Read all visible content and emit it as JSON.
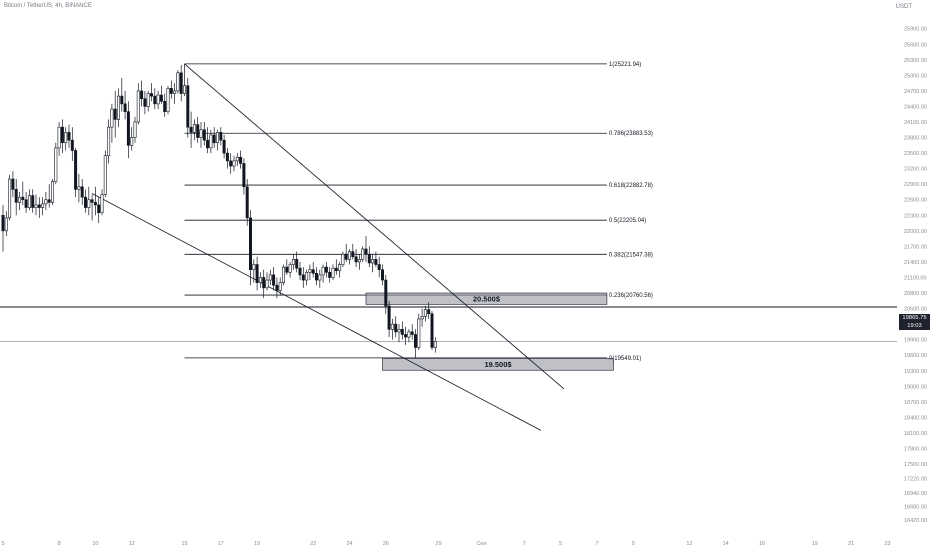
{
  "header": {
    "title": "Bitcoin / TetherUS, 4h, BINANCE",
    "unit": "USDT"
  },
  "price_tag": {
    "price": "19865.75",
    "countdown": "19:03"
  },
  "colors": {
    "candle": "#131722",
    "grid_line": "#131722",
    "zone_fill": "#9598a1",
    "zone_stroke": "#131722",
    "axis_text": "#888b95"
  },
  "chart_data": {
    "type": "candlestick",
    "title": "Bitcoin / TetherUS, 4h, BINANCE",
    "y_unit": "USDT",
    "ylim": [
      16420,
      26300
    ],
    "y_ticks": [
      "16420.00",
      "16680.00",
      "16940.00",
      "17220.00",
      "17500.00",
      "17800.00",
      "18100.00",
      "18400.00",
      "18700.00",
      "19000.00",
      "19300.00",
      "19600.00",
      "19900.00",
      "20200.00",
      "20500.00",
      "20800.00",
      "21100.00",
      "21400.00",
      "21700.00",
      "22000.00",
      "22300.00",
      "22600.00",
      "22900.00",
      "23200.00",
      "23500.00",
      "23800.00",
      "24100.00",
      "24400.00",
      "24700.00",
      "25000.00",
      "25300.00",
      "25600.00",
      "25900.00",
      "26200.00"
    ],
    "x_ticks": [
      {
        "label": "5",
        "i": 0
      },
      {
        "label": "8",
        "i": 17
      },
      {
        "label": "10",
        "i": 28
      },
      {
        "label": "12",
        "i": 39
      },
      {
        "label": "15",
        "i": 55
      },
      {
        "label": "17",
        "i": 66
      },
      {
        "label": "19",
        "i": 77
      },
      {
        "label": "22",
        "i": 94
      },
      {
        "label": "24",
        "i": 105
      },
      {
        "label": "26",
        "i": 116
      },
      {
        "label": "29",
        "i": 132
      },
      {
        "label": "Сен",
        "i": 145
      },
      {
        "label": "7",
        "i": 158
      },
      {
        "label": "5",
        "i": 169
      },
      {
        "label": "7",
        "i": 180
      },
      {
        "label": "9",
        "i": 191
      },
      {
        "label": "12",
        "i": 208
      },
      {
        "label": "14",
        "i": 219
      },
      {
        "label": "16",
        "i": 230
      },
      {
        "label": "19",
        "i": 246
      },
      {
        "label": "21",
        "i": 257
      },
      {
        "label": "23",
        "i": 268
      }
    ],
    "horizontal_lines": [
      {
        "name": "resistance-line",
        "value": 20530
      },
      {
        "name": "current-price-line",
        "value": 19865.75
      }
    ],
    "fibonacci": {
      "start_i": 55,
      "end_i": 183,
      "levels": [
        {
          "label": "1(25221.94)",
          "value": 25221.94
        },
        {
          "label": "0.786(23883.53)",
          "value": 23883.53
        },
        {
          "label": "0.618(22882.78)",
          "value": 22882.78
        },
        {
          "label": "0.5(22205.04)",
          "value": 22205.04
        },
        {
          "label": "0.382(21547.38)",
          "value": 21547.38
        },
        {
          "label": "0.236(20760.56)",
          "value": 20760.56
        },
        {
          "label": "0(19549.01)",
          "value": 19549.01
        }
      ]
    },
    "zones": [
      {
        "label": "20.500$",
        "start_i": 110,
        "end_i": 183,
        "top": 20800,
        "bottom": 20580
      },
      {
        "label": "19.500$",
        "start_i": 115,
        "end_i": 185,
        "top": 19540,
        "bottom": 19310
      }
    ],
    "trendlines": [
      {
        "name": "upper-channel-line",
        "from": [
          55,
          25221
        ],
        "to": [
          170,
          18950
        ]
      },
      {
        "name": "lower-channel-line",
        "from": [
          27,
          22720
        ],
        "to": [
          163,
          18150
        ]
      }
    ],
    "candles": [
      [
        22300,
        22500,
        21600,
        22000
      ],
      [
        22000,
        22380,
        21900,
        22250
      ],
      [
        22250,
        23080,
        22200,
        23000
      ],
      [
        23000,
        23150,
        22650,
        22800
      ],
      [
        22800,
        23000,
        22300,
        22550
      ],
      [
        22550,
        22750,
        22400,
        22650
      ],
      [
        22650,
        22950,
        22500,
        22600
      ],
      [
        22600,
        22750,
        22350,
        22450
      ],
      [
        22450,
        22800,
        22400,
        22680
      ],
      [
        22680,
        22800,
        22350,
        22450
      ],
      [
        22450,
        22700,
        22300,
        22500
      ],
      [
        22500,
        22650,
        22250,
        22450
      ],
      [
        22450,
        22650,
        22300,
        22520
      ],
      [
        22520,
        22750,
        22400,
        22600
      ],
      [
        22600,
        22900,
        22450,
        22550
      ],
      [
        22550,
        23000,
        22500,
        22950
      ],
      [
        22950,
        23700,
        22900,
        23600
      ],
      [
        23600,
        24100,
        23450,
        24000
      ],
      [
        24000,
        24150,
        23500,
        23700
      ],
      [
        23700,
        24000,
        23550,
        23900
      ],
      [
        23900,
        24050,
        23600,
        23750
      ],
      [
        23750,
        24000,
        23350,
        23550
      ],
      [
        23550,
        23600,
        22650,
        22800
      ],
      [
        22800,
        23100,
        22550,
        22850
      ],
      [
        22850,
        23000,
        22500,
        22650
      ],
      [
        22650,
        22800,
        22350,
        22450
      ],
      [
        22450,
        22850,
        22300,
        22600
      ],
      [
        22600,
        22700,
        22200,
        22550
      ],
      [
        22550,
        22850,
        22300,
        22500
      ],
      [
        22500,
        22650,
        22150,
        22350
      ],
      [
        22350,
        22800,
        22300,
        22700
      ],
      [
        22700,
        23550,
        22650,
        23450
      ],
      [
        23450,
        24150,
        23300,
        24000
      ],
      [
        24000,
        24450,
        23700,
        24350
      ],
      [
        24350,
        24700,
        23800,
        24150
      ],
      [
        24150,
        24750,
        24000,
        24600
      ],
      [
        24600,
        24950,
        24300,
        24450
      ],
      [
        24450,
        24700,
        24150,
        24300
      ],
      [
        24300,
        24500,
        23400,
        23650
      ],
      [
        23650,
        24000,
        23550,
        23800
      ],
      [
        23800,
        24200,
        23700,
        24100
      ],
      [
        24100,
        24850,
        24050,
        24700
      ],
      [
        24700,
        24900,
        24400,
        24550
      ],
      [
        24550,
        24700,
        24250,
        24400
      ],
      [
        24400,
        24700,
        24300,
        24650
      ],
      [
        24650,
        24850,
        24500,
        24600
      ],
      [
        24600,
        24750,
        24350,
        24450
      ],
      [
        24450,
        24700,
        24350,
        24620
      ],
      [
        24620,
        24800,
        24450,
        24500
      ],
      [
        24500,
        24650,
        24200,
        24300
      ],
      [
        24300,
        24800,
        24250,
        24750
      ],
      [
        24750,
        24900,
        24550,
        24650
      ],
      [
        24650,
        24850,
        24450,
        24700
      ],
      [
        24700,
        25100,
        24650,
        25050
      ],
      [
        25050,
        25200,
        24500,
        24650
      ],
      [
        24650,
        25222,
        24600,
        24800
      ],
      [
        24800,
        24950,
        23800,
        24000
      ],
      [
        24000,
        24300,
        23600,
        23900
      ],
      [
        23900,
        24150,
        23750,
        24050
      ],
      [
        24050,
        24200,
        23700,
        23800
      ],
      [
        23800,
        24100,
        23600,
        23950
      ],
      [
        23950,
        24100,
        23650,
        23750
      ],
      [
        23750,
        24000,
        23500,
        23600
      ],
      [
        23600,
        23950,
        23500,
        23850
      ],
      [
        23850,
        24000,
        23600,
        23700
      ],
      [
        23700,
        23950,
        23550,
        23900
      ],
      [
        23900,
        24000,
        23650,
        23750
      ],
      [
        23750,
        23850,
        23400,
        23500
      ],
      [
        23500,
        23600,
        23200,
        23350
      ],
      [
        23350,
        23500,
        23100,
        23250
      ],
      [
        23250,
        23450,
        23150,
        23350
      ],
      [
        23350,
        23500,
        23250,
        23420
      ],
      [
        23420,
        23550,
        23200,
        23300
      ],
      [
        23300,
        23400,
        22700,
        22850
      ],
      [
        22850,
        23000,
        22100,
        22250
      ],
      [
        22250,
        22400,
        20950,
        21250
      ],
      [
        21250,
        21450,
        21000,
        21350
      ],
      [
        21350,
        21500,
        20850,
        21000
      ],
      [
        21000,
        21200,
        20900,
        21100
      ],
      [
        21100,
        21250,
        20700,
        20900
      ],
      [
        20900,
        21200,
        20850,
        21050
      ],
      [
        21050,
        21250,
        20950,
        21150
      ],
      [
        21150,
        21300,
        20850,
        20950
      ],
      [
        20950,
        21100,
        20700,
        20850
      ],
      [
        20850,
        21100,
        20750,
        21000
      ],
      [
        21000,
        21350,
        20950,
        21300
      ],
      [
        21300,
        21450,
        21150,
        21200
      ],
      [
        21200,
        21400,
        21100,
        21350
      ],
      [
        21350,
        21550,
        21250,
        21450
      ],
      [
        21450,
        21600,
        21200,
        21280
      ],
      [
        21280,
        21400,
        21050,
        21150
      ],
      [
        21150,
        21300,
        20900,
        21050
      ],
      [
        21050,
        21250,
        20950,
        21200
      ],
      [
        21200,
        21350,
        21050,
        21250
      ],
      [
        21250,
        21400,
        21100,
        21180
      ],
      [
        21180,
        21300,
        20950,
        21050
      ],
      [
        21050,
        21250,
        20900,
        21150
      ],
      [
        21150,
        21350,
        21000,
        21300
      ],
      [
        21300,
        21400,
        21100,
        21200
      ],
      [
        21200,
        21300,
        21000,
        21100
      ],
      [
        21100,
        21350,
        21050,
        21280
      ],
      [
        21280,
        21450,
        21150,
        21230
      ],
      [
        21230,
        21400,
        21100,
        21350
      ],
      [
        21350,
        21600,
        21300,
        21550
      ],
      [
        21550,
        21750,
        21400,
        21450
      ],
      [
        21450,
        21650,
        21350,
        21600
      ],
      [
        21600,
        21750,
        21450,
        21500
      ],
      [
        21500,
        21650,
        21300,
        21400
      ],
      [
        21400,
        21550,
        21250,
        21450
      ],
      [
        21450,
        21700,
        21400,
        21650
      ],
      [
        21650,
        21900,
        21400,
        21550
      ],
      [
        21550,
        21700,
        21300,
        21380
      ],
      [
        21380,
        21550,
        21200,
        21450
      ],
      [
        21450,
        21600,
        21300,
        21350
      ],
      [
        21350,
        21500,
        21100,
        21250
      ],
      [
        21250,
        21350,
        20950,
        21050
      ],
      [
        21050,
        21150,
        20400,
        20550
      ],
      [
        20550,
        20650,
        19950,
        20100
      ],
      [
        20100,
        20300,
        19900,
        20200
      ],
      [
        20200,
        20350,
        19950,
        20050
      ],
      [
        20050,
        20200,
        19850,
        20100
      ],
      [
        20100,
        20250,
        19900,
        20000
      ],
      [
        20000,
        20150,
        19800,
        19950
      ],
      [
        19950,
        20100,
        19850,
        20050
      ],
      [
        20050,
        20200,
        19900,
        20000
      ],
      [
        20000,
        20100,
        19550,
        19750
      ],
      [
        19750,
        20400,
        19700,
        20300
      ],
      [
        20300,
        20500,
        20150,
        20350
      ],
      [
        20350,
        20550,
        20250,
        20480
      ],
      [
        20480,
        20620,
        20300,
        20400
      ],
      [
        20400,
        20450,
        19700,
        19750
      ],
      [
        19750,
        19950,
        19650,
        19866
      ]
    ]
  }
}
